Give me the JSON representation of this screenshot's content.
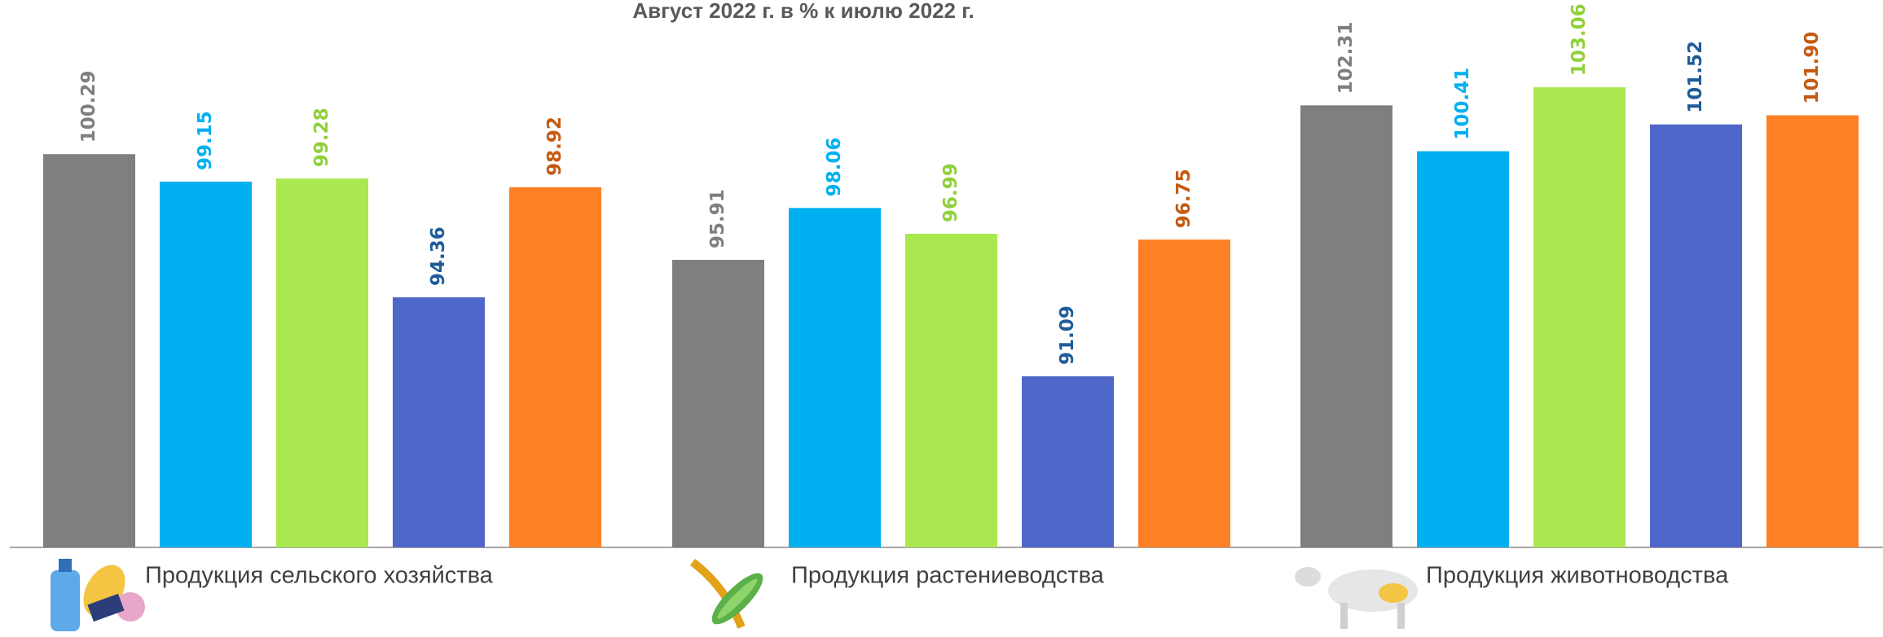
{
  "chart_data": {
    "type": "bar",
    "title": "Август 2022 г. в % к июлю 2022 г.",
    "categories": [
      "Продукция сельского хозяйства",
      "Продукция растениеводства",
      "Продукция животноводства"
    ],
    "series": [
      {
        "color": "#7f7f7f",
        "label_color": "#7f7f7f",
        "values": [
          100.29,
          95.91,
          102.31
        ]
      },
      {
        "color": "#00b0f0",
        "label_color": "#00b0f0",
        "values": [
          99.15,
          98.06,
          100.41
        ]
      },
      {
        "color": "#a9e84f",
        "label_color": "#8fd13a",
        "values": [
          99.28,
          96.99,
          103.06
        ]
      },
      {
        "color": "#4f67c8",
        "label_color": "#1f5c99",
        "values": [
          94.36,
          91.09,
          101.52
        ]
      },
      {
        "color": "#fd8024",
        "label_color": "#c55a11",
        "values": [
          98.92,
          96.75,
          101.9
        ],
        "value_labels": [
          "98.92",
          "96.75",
          "101.90"
        ]
      }
    ],
    "ylim": [
      84,
      106
    ]
  }
}
